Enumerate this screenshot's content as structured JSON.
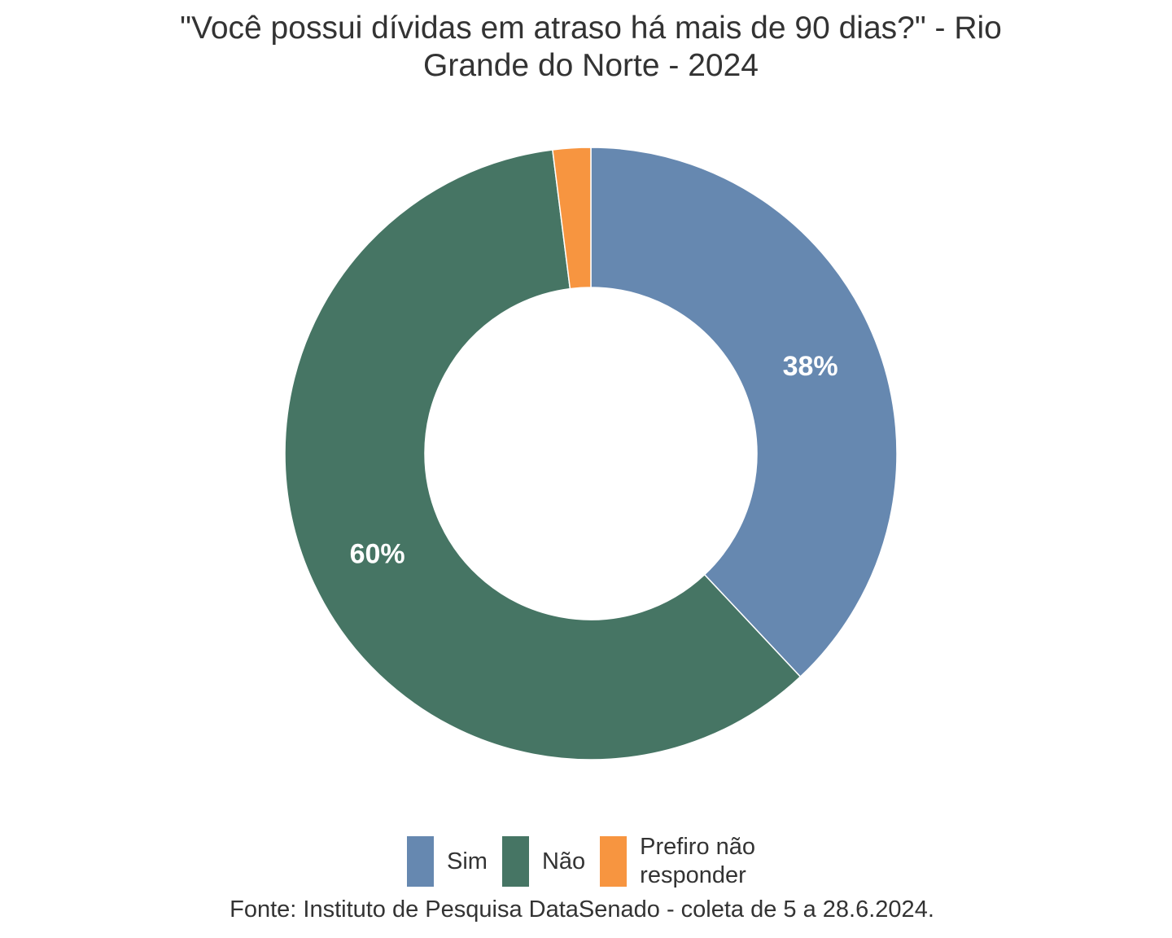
{
  "chart_data": {
    "type": "pie",
    "variant": "donut",
    "title_line1": "\"Você possui dívidas em atraso há mais de 90 dias?\" - Rio",
    "title_line2": "Grande do Norte - 2024",
    "categories": [
      "Sim",
      "Não",
      "Prefiro não responder"
    ],
    "values": [
      38,
      60,
      2
    ],
    "unit": "%",
    "data_labels": [
      "38%",
      "60%",
      ""
    ],
    "colors": [
      "#6688b0",
      "#467564",
      "#f79540"
    ],
    "legend": {
      "position": "bottom",
      "entries": [
        {
          "label": "Sim",
          "color": "#6688b0"
        },
        {
          "label": "Não",
          "color": "#467564"
        },
        {
          "label": "Prefiro não\nresponder",
          "color": "#f79540"
        }
      ]
    },
    "source": "Fonte: Instituto de Pesquisa DataSenado - coleta de 5 a 28.6.2024."
  }
}
